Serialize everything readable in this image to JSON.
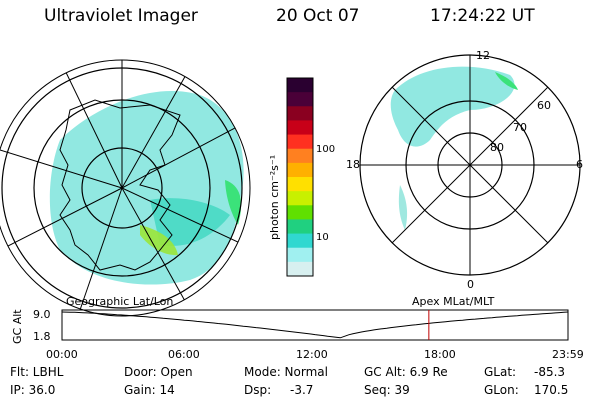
{
  "header": {
    "instrument": "Ultraviolet Imager",
    "date": "20 Oct 07",
    "time": "17:24:22 UT"
  },
  "colorbar": {
    "unit_label": "photon cm⁻²s⁻¹",
    "ticks": [
      "100",
      "10"
    ],
    "colors": [
      "#2a0030",
      "#4a0038",
      "#8a0020",
      "#c80018",
      "#ff3020",
      "#ff8020",
      "#ffb000",
      "#ffe000",
      "#c8f000",
      "#60e000",
      "#20d080",
      "#30d8d0",
      "#a0f0f0",
      "#d8f0f0"
    ]
  },
  "left_map": {
    "label": "Geographic Lat/Lon"
  },
  "right_map": {
    "label": "Apex MLat/MLT",
    "mlt_labels": {
      "top": "12",
      "left": "18",
      "right": "6",
      "bottom": "0"
    },
    "mlat_labels": [
      "60",
      "70",
      "80"
    ]
  },
  "altitude_panel": {
    "ylabel": "GC Alt",
    "yticks": [
      "9.0",
      "1.8"
    ],
    "xticks": [
      "00:00",
      "06:00",
      "12:00",
      "18:00",
      "23:59"
    ],
    "current_time_marker": "17:24"
  },
  "info": {
    "filter_label": "Flt: LBHL",
    "ip_label": "IP: 36.0",
    "door_label": "Door: Open",
    "gain_label": "Gain: 14",
    "mode_label": "Mode: Normal",
    "dsp_label": "Dsp:",
    "dsp_value": "-3.7",
    "gcalt_label": "GC Alt: 6.9 Re",
    "seq_label": "Seq: 39",
    "glat_label": "GLat:",
    "glat_value": "-85.3",
    "glon_label": "GLon:",
    "glon_value": "170.5"
  }
}
